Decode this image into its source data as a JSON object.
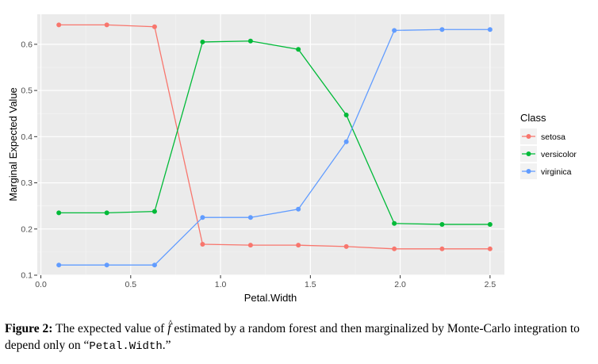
{
  "chart_data": {
    "type": "line",
    "xlabel": "Petal.Width",
    "ylabel": "Marginal Expected Value",
    "xlim": [
      -0.02,
      2.58
    ],
    "ylim": [
      0.1,
      0.665
    ],
    "x_ticks": [
      0.0,
      0.5,
      1.0,
      1.5,
      2.0,
      2.5
    ],
    "x_tick_labels": [
      "0.0",
      "0.5",
      "1.0",
      "1.5",
      "2.0",
      "2.5"
    ],
    "y_ticks": [
      0.1,
      0.2,
      0.3,
      0.4,
      0.5,
      0.6
    ],
    "y_tick_labels": [
      "0.1",
      "0.2",
      "0.3",
      "0.4",
      "0.5",
      "0.6"
    ],
    "grid": true,
    "legend_title": "Class",
    "legend_position": "right",
    "x": [
      0.1,
      0.367,
      0.633,
      0.9,
      1.167,
      1.433,
      1.7,
      1.967,
      2.233,
      2.5
    ],
    "series": [
      {
        "name": "setosa",
        "color": "#F8766D",
        "values": [
          0.642,
          0.642,
          0.638,
          0.167,
          0.165,
          0.165,
          0.162,
          0.157,
          0.157,
          0.157
        ]
      },
      {
        "name": "versicolor",
        "color": "#00BA38",
        "values": [
          0.235,
          0.235,
          0.238,
          0.605,
          0.607,
          0.589,
          0.447,
          0.212,
          0.21,
          0.21
        ]
      },
      {
        "name": "virginica",
        "color": "#619CFF",
        "values": [
          0.122,
          0.122,
          0.122,
          0.225,
          0.225,
          0.243,
          0.389,
          0.63,
          0.632,
          0.632
        ]
      }
    ]
  },
  "caption": {
    "label": "Figure 2:",
    "text_before": "The expected value of",
    "symbol": "f",
    "text_after": "estimated by a random forest and then marginalized by Monte-Carlo integration to depend only on “",
    "code": "Petal.Width",
    "text_end": ".”"
  }
}
